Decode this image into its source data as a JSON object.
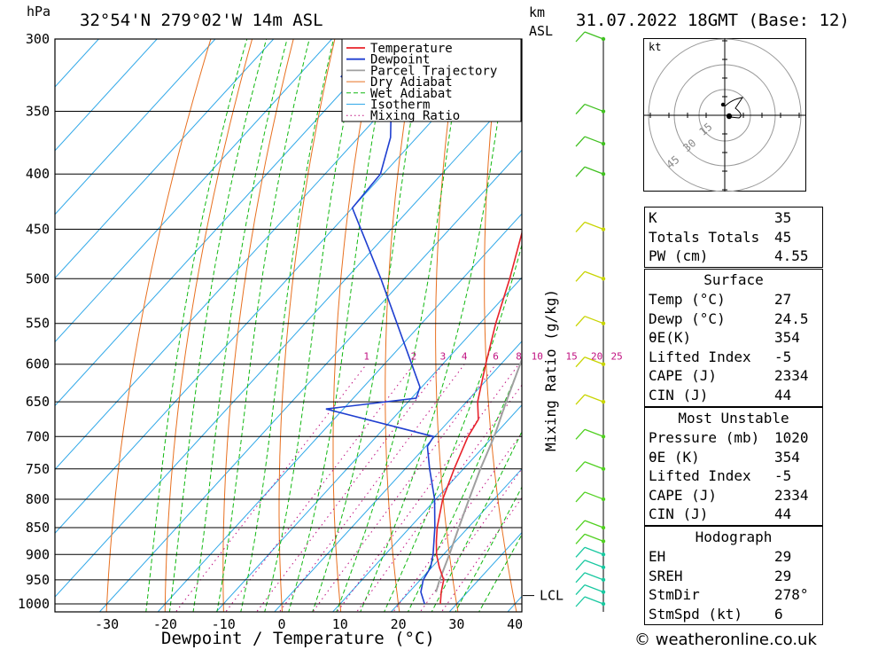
{
  "header": {
    "pressure_unit": "hPa",
    "location": "32°54'N 279°02'W 14m ASL",
    "km_label": "km",
    "asl_label": "ASL",
    "datetime": "31.07.2022 18GMT (Base: 12)",
    "copyright": "© weatheronline.co.uk"
  },
  "chart_data": {
    "type": "line",
    "subtype": "skew-T log-P",
    "xlabel": "Dewpoint / Temperature (°C)",
    "ylabel": "hPa",
    "mixing_ratio_axis_label": "Mixing Ratio (g/kg)",
    "x_ticks": [
      -30,
      -20,
      -10,
      0,
      10,
      20,
      30,
      40
    ],
    "y_ticks": [
      300,
      350,
      400,
      450,
      500,
      550,
      600,
      650,
      700,
      750,
      800,
      850,
      900,
      950,
      1000
    ],
    "mixing_ratio_labels": [
      "1",
      "2",
      "3",
      "4",
      "6",
      "8",
      "10",
      "15",
      "20",
      "25"
    ],
    "legend": [
      "Temperature",
      "Dewpoint",
      "Parcel Trajectory",
      "Dry Adiabat",
      "Wet Adiabat",
      "Isotherm",
      "Mixing Ratio"
    ],
    "legend_position": "top-right",
    "lcl_label": "LCL",
    "lcl_pressure": 975,
    "series": [
      {
        "name": "Temperature",
        "color": "#e8222a",
        "points": [
          [
            1000,
            27.2
          ],
          [
            975,
            25.5
          ],
          [
            950,
            24.0
          ],
          [
            925,
            21.3
          ],
          [
            900,
            18.8
          ],
          [
            875,
            16.7
          ],
          [
            850,
            14.7
          ],
          [
            800,
            11.2
          ],
          [
            750,
            8.4
          ],
          [
            700,
            5.7
          ],
          [
            675,
            4.8
          ],
          [
            650,
            1.9
          ],
          [
            600,
            -2.6
          ],
          [
            550,
            -7.3
          ],
          [
            500,
            -11.9
          ],
          [
            450,
            -17.4
          ],
          [
            425,
            -20.4
          ],
          [
            400,
            -24.8
          ],
          [
            350,
            -34.8
          ],
          [
            325,
            -40.2
          ],
          [
            300,
            -45.9
          ]
        ]
      },
      {
        "name": "Dewpoint",
        "color": "#1f3fd0",
        "points": [
          [
            1000,
            24.5
          ],
          [
            975,
            22.0
          ],
          [
            950,
            20.5
          ],
          [
            925,
            19.8
          ],
          [
            900,
            18.2
          ],
          [
            850,
            14.3
          ],
          [
            800,
            9.8
          ],
          [
            750,
            4.2
          ],
          [
            715,
            0.3
          ],
          [
            700,
            -0.2
          ],
          [
            660,
            -23.0
          ],
          [
            645,
            -9.2
          ],
          [
            630,
            -10.3
          ],
          [
            600,
            -15.3
          ],
          [
            500,
            -34.0
          ],
          [
            430,
            -50.0
          ],
          [
            400,
            -50.5
          ],
          [
            370,
            -54.5
          ],
          [
            350,
            -58.5
          ],
          [
            325,
            -72.5
          ],
          [
            300,
            -73.0
          ]
        ]
      },
      {
        "name": "Parcel Trajectory",
        "color": "#a0a0a0",
        "points": [
          [
            975,
            24.6
          ],
          [
            950,
            23.3
          ],
          [
            900,
            21.0
          ],
          [
            850,
            18.4
          ],
          [
            800,
            15.7
          ],
          [
            750,
            12.9
          ],
          [
            700,
            10.2
          ],
          [
            650,
            6.8
          ],
          [
            600,
            3.3
          ],
          [
            550,
            -0.7
          ],
          [
            500,
            -5.4
          ],
          [
            450,
            -11.4
          ],
          [
            400,
            -19.6
          ],
          [
            370,
            -25.2
          ]
        ]
      }
    ],
    "wind_barbs": {
      "color": "#c8d400",
      "pressures": [
        1000,
        975,
        950,
        925,
        900,
        875,
        850,
        800,
        750,
        700,
        650,
        600,
        550,
        500,
        450,
        400,
        375,
        350,
        300
      ]
    }
  },
  "hodograph": {
    "unit_label": "kt",
    "ring_labels": [
      "15",
      "30",
      "45"
    ]
  },
  "stats": {
    "rows": [
      {
        "label": "K",
        "value": "35"
      },
      {
        "label": "Totals Totals",
        "value": "45"
      },
      {
        "label": "PW (cm)",
        "value": "4.55"
      }
    ]
  },
  "surface": {
    "title": "Surface",
    "rows": [
      {
        "label": "Temp (°C)",
        "value": "27"
      },
      {
        "label": "Dewp (°C)",
        "value": "24.5"
      },
      {
        "label": "θE(K)",
        "value": "354"
      },
      {
        "label": "Lifted Index",
        "value": "-5"
      },
      {
        "label": "CAPE (J)",
        "value": "2334"
      },
      {
        "label": "CIN (J)",
        "value": "44"
      }
    ]
  },
  "most_unstable": {
    "title": "Most Unstable",
    "rows": [
      {
        "label": "Pressure (mb)",
        "value": "1020"
      },
      {
        "label": "θE (K)",
        "value": "354"
      },
      {
        "label": "Lifted Index",
        "value": "-5"
      },
      {
        "label": "CAPE (J)",
        "value": "2334"
      },
      {
        "label": "CIN (J)",
        "value": "44"
      }
    ]
  },
  "hodograph_stats": {
    "title": "Hodograph",
    "rows": [
      {
        "label": "EH",
        "value": "29"
      },
      {
        "label": "SREH",
        "value": "29"
      },
      {
        "label": "StmDir",
        "value": "278°"
      },
      {
        "label": "StmSpd (kt)",
        "value": "6"
      }
    ]
  }
}
